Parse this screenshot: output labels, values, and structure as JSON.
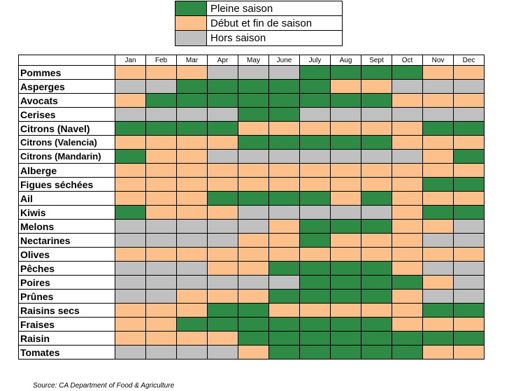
{
  "chart_data": {
    "type": "heatmap",
    "source": "Source: CA Department of Food & Agriculture",
    "legend": [
      {
        "key": "P",
        "label": "Pleine saison",
        "color": "#2e8b46"
      },
      {
        "key": "D",
        "label": "Début et fin de saison",
        "color": "#fdc08a"
      },
      {
        "key": "H",
        "label": "Hors saison",
        "color": "#c0c0c0"
      }
    ],
    "months": [
      "Jan",
      "Feb",
      "Mar",
      "Apr",
      "May",
      "June",
      "July",
      "Aug",
      "Sept",
      "Oct",
      "Nov",
      "Dec"
    ],
    "rows": [
      {
        "name": "Pommes",
        "values": [
          "D",
          "D",
          "D",
          "H",
          "H",
          "H",
          "P",
          "P",
          "P",
          "P",
          "D",
          "D"
        ]
      },
      {
        "name": "Asperges",
        "values": [
          "H",
          "H",
          "P",
          "P",
          "P",
          "P",
          "P",
          "D",
          "D",
          "H",
          "H",
          "H"
        ]
      },
      {
        "name": "Avocats",
        "values": [
          "D",
          "P",
          "P",
          "P",
          "P",
          "P",
          "P",
          "P",
          "P",
          "D",
          "D",
          "D"
        ]
      },
      {
        "name": "Cerises",
        "values": [
          "H",
          "H",
          "H",
          "H",
          "P",
          "P",
          "H",
          "H",
          "H",
          "H",
          "H",
          "H"
        ]
      },
      {
        "name": "Citrons (Navel)",
        "values": [
          "P",
          "P",
          "P",
          "P",
          "D",
          "D",
          "D",
          "D",
          "D",
          "D",
          "P",
          "P"
        ]
      },
      {
        "name": "Citrons (Valencia)",
        "values": [
          "D",
          "D",
          "D",
          "D",
          "P",
          "P",
          "P",
          "P",
          "P",
          "D",
          "D",
          "D"
        ]
      },
      {
        "name": "Citrons (Mandarin)",
        "values": [
          "P",
          "D",
          "D",
          "H",
          "H",
          "H",
          "H",
          "H",
          "H",
          "H",
          "D",
          "P"
        ]
      },
      {
        "name": "Alberge",
        "values": [
          "D",
          "D",
          "D",
          "D",
          "D",
          "D",
          "D",
          "D",
          "D",
          "D",
          "D",
          "D"
        ]
      },
      {
        "name": "Figues séchées",
        "values": [
          "D",
          "D",
          "D",
          "D",
          "D",
          "D",
          "D",
          "D",
          "D",
          "D",
          "P",
          "P"
        ]
      },
      {
        "name": "Ail",
        "values": [
          "D",
          "D",
          "D",
          "P",
          "P",
          "P",
          "P",
          "D",
          "P",
          "D",
          "D",
          "D"
        ]
      },
      {
        "name": "Kiwis",
        "values": [
          "P",
          "D",
          "D",
          "D",
          "H",
          "H",
          "H",
          "H",
          "H",
          "D",
          "P",
          "P"
        ]
      },
      {
        "name": "Melons",
        "values": [
          "H",
          "H",
          "H",
          "H",
          "H",
          "D",
          "P",
          "P",
          "P",
          "D",
          "D",
          "H"
        ]
      },
      {
        "name": "Nectarines",
        "values": [
          "H",
          "H",
          "H",
          "H",
          "D",
          "D",
          "P",
          "D",
          "D",
          "D",
          "H",
          "H"
        ]
      },
      {
        "name": "Olives",
        "values": [
          "D",
          "D",
          "D",
          "D",
          "D",
          "D",
          "D",
          "D",
          "D",
          "D",
          "D",
          "D"
        ]
      },
      {
        "name": "Pêches",
        "values": [
          "H",
          "H",
          "H",
          "D",
          "D",
          "P",
          "P",
          "P",
          "P",
          "D",
          "H",
          "H"
        ]
      },
      {
        "name": "Poires",
        "values": [
          "H",
          "H",
          "H",
          "H",
          "H",
          "H",
          "P",
          "P",
          "P",
          "P",
          "D",
          "H"
        ]
      },
      {
        "name": "Prûnes",
        "values": [
          "H",
          "H",
          "D",
          "D",
          "D",
          "P",
          "P",
          "P",
          "P",
          "D",
          "H",
          "H"
        ]
      },
      {
        "name": "Raisins secs",
        "values": [
          "D",
          "D",
          "D",
          "P",
          "P",
          "D",
          "D",
          "D",
          "D",
          "D",
          "P",
          "P"
        ]
      },
      {
        "name": "Fraises",
        "values": [
          "D",
          "D",
          "P",
          "P",
          "P",
          "P",
          "P",
          "P",
          "P",
          "D",
          "D",
          "D"
        ]
      },
      {
        "name": "Raisin",
        "values": [
          "D",
          "D",
          "D",
          "D",
          "P",
          "P",
          "P",
          "P",
          "P",
          "P",
          "P",
          "P"
        ]
      },
      {
        "name": "Tomates",
        "values": [
          "H",
          "H",
          "H",
          "H",
          "D",
          "P",
          "P",
          "P",
          "P",
          "P",
          "D",
          "D"
        ]
      }
    ]
  }
}
